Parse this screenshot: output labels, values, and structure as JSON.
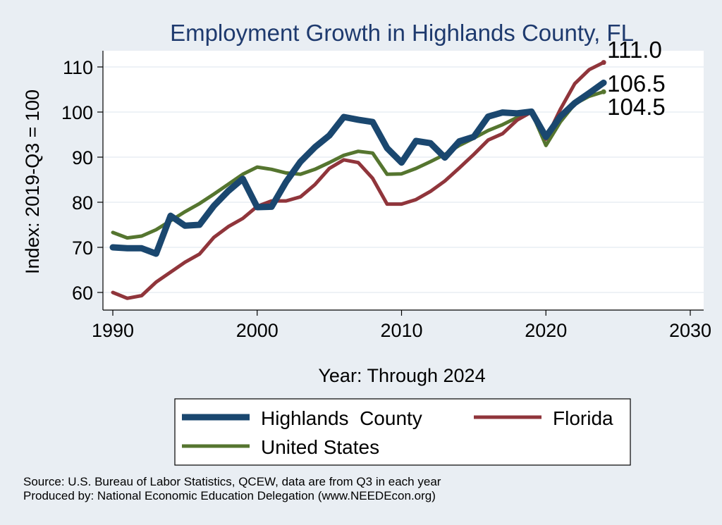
{
  "chart_data": {
    "type": "line",
    "title": "Employment Growth in Highlands County, FL",
    "xlabel": "Year: Through 2024",
    "ylabel": "Index: 2019-Q3 = 100",
    "xlim": [
      1990,
      2030
    ],
    "ylim": [
      56,
      114
    ],
    "xticks": [
      1990,
      2000,
      2010,
      2020,
      2030
    ],
    "yticks": [
      60,
      70,
      80,
      90,
      100,
      110
    ],
    "grid": true,
    "legend_position": "bottom",
    "x": [
      1990,
      1991,
      1992,
      1993,
      1994,
      1995,
      1996,
      1997,
      1998,
      1999,
      2000,
      2001,
      2002,
      2003,
      2004,
      2005,
      2006,
      2007,
      2008,
      2009,
      2010,
      2011,
      2012,
      2013,
      2014,
      2015,
      2016,
      2017,
      2018,
      2019,
      2020,
      2021,
      2022,
      2023,
      2024
    ],
    "series": [
      {
        "name": "Highlands  County",
        "color": "#1a476f",
        "values": [
          70.0,
          69.8,
          69.8,
          68.6,
          77.0,
          74.8,
          75.0,
          79.2,
          82.5,
          85.2,
          78.9,
          79.0,
          84.5,
          89.0,
          92.2,
          94.8,
          98.9,
          98.3,
          97.8,
          92.0,
          88.8,
          93.6,
          93.1,
          89.9,
          93.5,
          94.5,
          99.0,
          99.9,
          99.7,
          100.1,
          94.5,
          99.0,
          102.0,
          104.2,
          106.5
        ],
        "end_label": "106.5"
      },
      {
        "name": "Florida",
        "color": "#90353b",
        "values": [
          60.0,
          58.7,
          59.3,
          62.3,
          64.5,
          66.7,
          68.5,
          72.2,
          74.6,
          76.4,
          79.1,
          80.3,
          80.3,
          81.2,
          83.9,
          87.5,
          89.4,
          88.8,
          85.3,
          79.6,
          79.6,
          80.6,
          82.4,
          84.7,
          87.6,
          90.6,
          93.8,
          95.2,
          98.2,
          100.0,
          94.0,
          100.6,
          106.3,
          109.4,
          111.0
        ],
        "end_label": "111.0"
      },
      {
        "name": "United States",
        "color": "#55752f",
        "values": [
          73.3,
          72.1,
          72.5,
          73.9,
          75.9,
          77.9,
          79.7,
          81.8,
          84.0,
          86.2,
          87.8,
          87.3,
          86.5,
          86.2,
          87.3,
          88.8,
          90.4,
          91.3,
          90.9,
          86.2,
          86.3,
          87.5,
          89.0,
          90.6,
          92.6,
          94.2,
          95.9,
          97.2,
          98.8,
          100.0,
          92.6,
          97.8,
          101.8,
          103.5,
          104.5
        ],
        "end_label": "104.5"
      }
    ]
  },
  "legend": {
    "items": [
      {
        "label": "Highlands  County",
        "color": "#1a476f"
      },
      {
        "label": "Florida",
        "color": "#90353b"
      },
      {
        "label": "United States",
        "color": "#55752f"
      }
    ]
  },
  "notes": {
    "source": "Source: U.S. Bureau of Labor Statistics, QCEW, data are from Q3 in each year",
    "produced": "Produced by: National Economic Education Delegation (www.NEEDEcon.org)"
  }
}
